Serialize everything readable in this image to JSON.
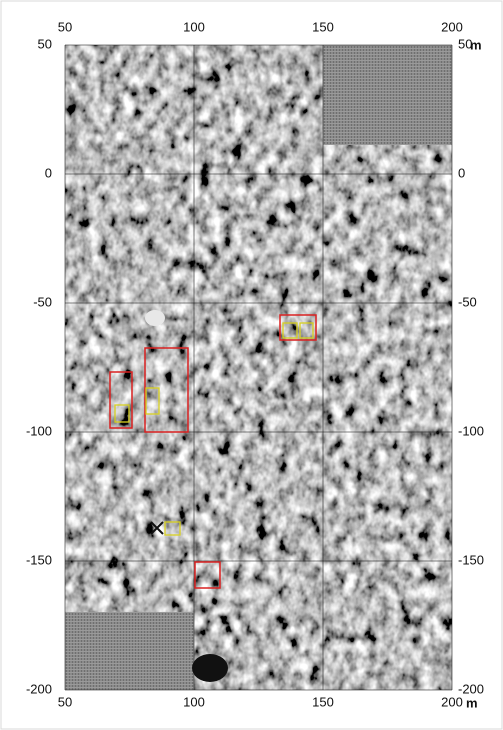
{
  "map": {
    "xlim": [
      50,
      200
    ],
    "ylim": [
      -200,
      50
    ],
    "xticks": [
      50,
      100,
      150,
      200
    ],
    "yticks": [
      50,
      0,
      -50,
      -100,
      -150,
      -200
    ],
    "unit": "m",
    "grid": true
  }
}
